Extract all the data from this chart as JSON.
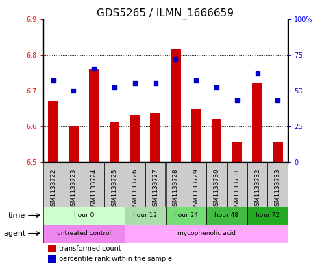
{
  "title": "GDS5265 / ILMN_1666659",
  "samples": [
    "GSM1133722",
    "GSM1133723",
    "GSM1133724",
    "GSM1133725",
    "GSM1133726",
    "GSM1133727",
    "GSM1133728",
    "GSM1133729",
    "GSM1133730",
    "GSM1133731",
    "GSM1133732",
    "GSM1133733"
  ],
  "bar_values": [
    6.67,
    6.6,
    6.76,
    6.61,
    6.63,
    6.635,
    6.815,
    6.65,
    6.62,
    6.555,
    6.72,
    6.555
  ],
  "bar_bottom": 6.5,
  "percentile_values": [
    57,
    50,
    65,
    52,
    55,
    55,
    72,
    57,
    52,
    43,
    62,
    43
  ],
  "ylim_left": [
    6.5,
    6.9
  ],
  "ylim_right": [
    0,
    100
  ],
  "yticks_left": [
    6.5,
    6.6,
    6.7,
    6.8,
    6.9
  ],
  "yticks_right": [
    0,
    25,
    50,
    75,
    100
  ],
  "ytick_labels_right": [
    "0",
    "25",
    "50",
    "75",
    "100%"
  ],
  "bar_color": "#cc0000",
  "dot_color": "#0000cc",
  "sample_box_color": "#cccccc",
  "time_groups": [
    {
      "label": "hour 0",
      "start": 0,
      "end": 3,
      "color": "#ccffcc"
    },
    {
      "label": "hour 12",
      "start": 4,
      "end": 5,
      "color": "#aaddaa"
    },
    {
      "label": "hour 24",
      "start": 6,
      "end": 7,
      "color": "#77dd77"
    },
    {
      "label": "hour 48",
      "start": 8,
      "end": 9,
      "color": "#44bb44"
    },
    {
      "label": "hour 72",
      "start": 10,
      "end": 11,
      "color": "#22aa22"
    }
  ],
  "agent_groups": [
    {
      "label": "untreated control",
      "start": 0,
      "end": 3,
      "color": "#ee88ee"
    },
    {
      "label": "mycophenolic acid",
      "start": 4,
      "end": 11,
      "color": "#ffaaff"
    }
  ],
  "legend_bar_label": "transformed count",
  "legend_dot_label": "percentile rank within the sample",
  "xlabel_time": "time",
  "xlabel_agent": "agent",
  "title_fontsize": 11,
  "tick_fontsize": 7,
  "label_fontsize": 8,
  "bar_width": 0.5
}
